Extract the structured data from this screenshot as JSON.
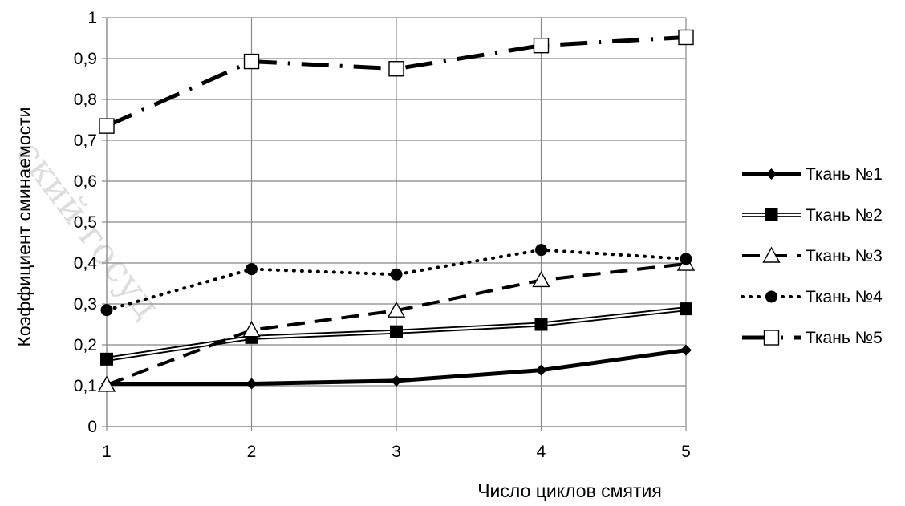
{
  "chart_data": {
    "type": "line",
    "title": "",
    "xlabel": "Число циклов смятия",
    "ylabel": "Коэффициент сминаемости",
    "x": [
      1,
      2,
      3,
      4,
      5
    ],
    "xlim": [
      1,
      5
    ],
    "ylim": [
      0,
      1
    ],
    "x_ticks": [
      "1",
      "2",
      "3",
      "4",
      "5"
    ],
    "y_ticks": [
      "0",
      "0,1",
      "0,2",
      "0,3",
      "0,4",
      "0,5",
      "0,6",
      "0,7",
      "0,8",
      "0,9",
      "1"
    ],
    "grid": true,
    "legend_position": "right",
    "series": [
      {
        "name": "Ткань №1",
        "values": [
          0.105,
          0.105,
          0.112,
          0.138,
          0.187
        ],
        "marker": "diamond",
        "line": "solid-thick",
        "color": "#000000"
      },
      {
        "name": "Ткань №2",
        "values": [
          0.165,
          0.218,
          0.232,
          0.25,
          0.288
        ],
        "marker": "filled-square",
        "line": "double",
        "color": "#000000"
      },
      {
        "name": "Ткань №3",
        "values": [
          0.102,
          0.236,
          0.284,
          0.358,
          0.398
        ],
        "marker": "open-triangle",
        "line": "dashed",
        "color": "#000000"
      },
      {
        "name": "Ткань №4",
        "values": [
          0.285,
          0.385,
          0.372,
          0.432,
          0.41
        ],
        "marker": "filled-circle",
        "line": "dotted",
        "color": "#000000"
      },
      {
        "name": "Ткань №5",
        "values": [
          0.735,
          0.893,
          0.875,
          0.932,
          0.952
        ],
        "marker": "open-square",
        "line": "dash-dot",
        "color": "#000000"
      }
    ]
  },
  "watermark": {
    "text": "ский госуд"
  }
}
